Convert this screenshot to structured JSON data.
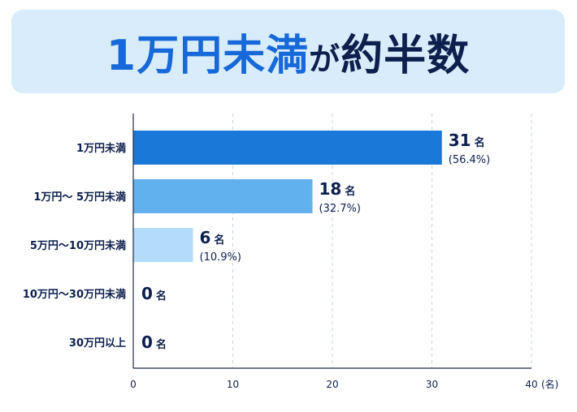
{
  "title": {
    "main": "1万円未満",
    "particle": "が",
    "rest": "約半数"
  },
  "chart_data": {
    "type": "bar",
    "orientation": "horizontal",
    "categories": [
      "1万円未満",
      "1万円～ 5万円未満",
      "5万円～10万円未満",
      "10万円～30万円未満",
      "30万円以上"
    ],
    "values": [
      31,
      18,
      6,
      0,
      0
    ],
    "percent_labels": [
      "(56.4%)",
      "(32.7%)",
      "(10.9%)",
      "",
      ""
    ],
    "value_unit": "名",
    "bar_colors": [
      "#1a78d8",
      "#62b1ef",
      "#b3dcfb",
      "#b3dcfb",
      "#b3dcfb"
    ],
    "xlim": [
      0,
      40
    ],
    "xticks": [
      0,
      10,
      20,
      30,
      40
    ],
    "xlabel": "(名)",
    "grid": "vertical dashed"
  }
}
